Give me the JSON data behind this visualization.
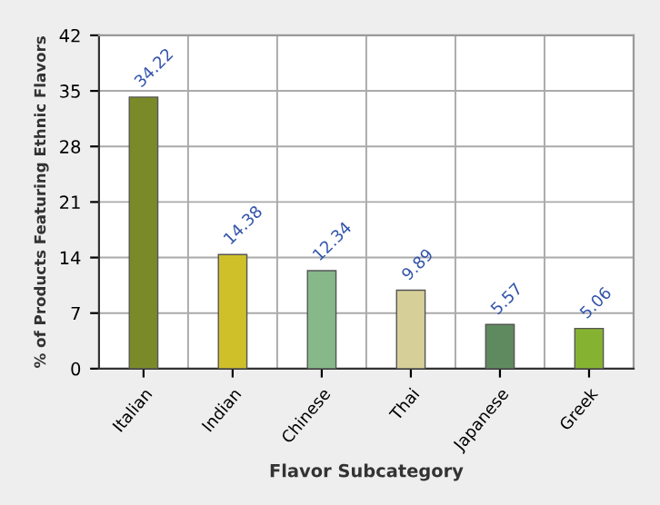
{
  "chart_data": {
    "type": "bar",
    "xlabel": "Flavor Subcategory",
    "ylabel": "% of Products Featuring Ethnic Flavors",
    "categories": [
      "Italian",
      "Indian",
      "Chinese",
      "Thai",
      "Japanese",
      "Greek"
    ],
    "values": [
      34.22,
      14.38,
      12.34,
      9.89,
      5.57,
      5.06
    ],
    "colors": [
      "#7a8a28",
      "#cfc02a",
      "#86b88a",
      "#d6cf98",
      "#5f8a5f",
      "#86b232"
    ],
    "data_labels": true,
    "ylim": [
      0,
      42
    ],
    "yticks": [
      0,
      7,
      14,
      21,
      28,
      35,
      42
    ],
    "grid": true
  }
}
